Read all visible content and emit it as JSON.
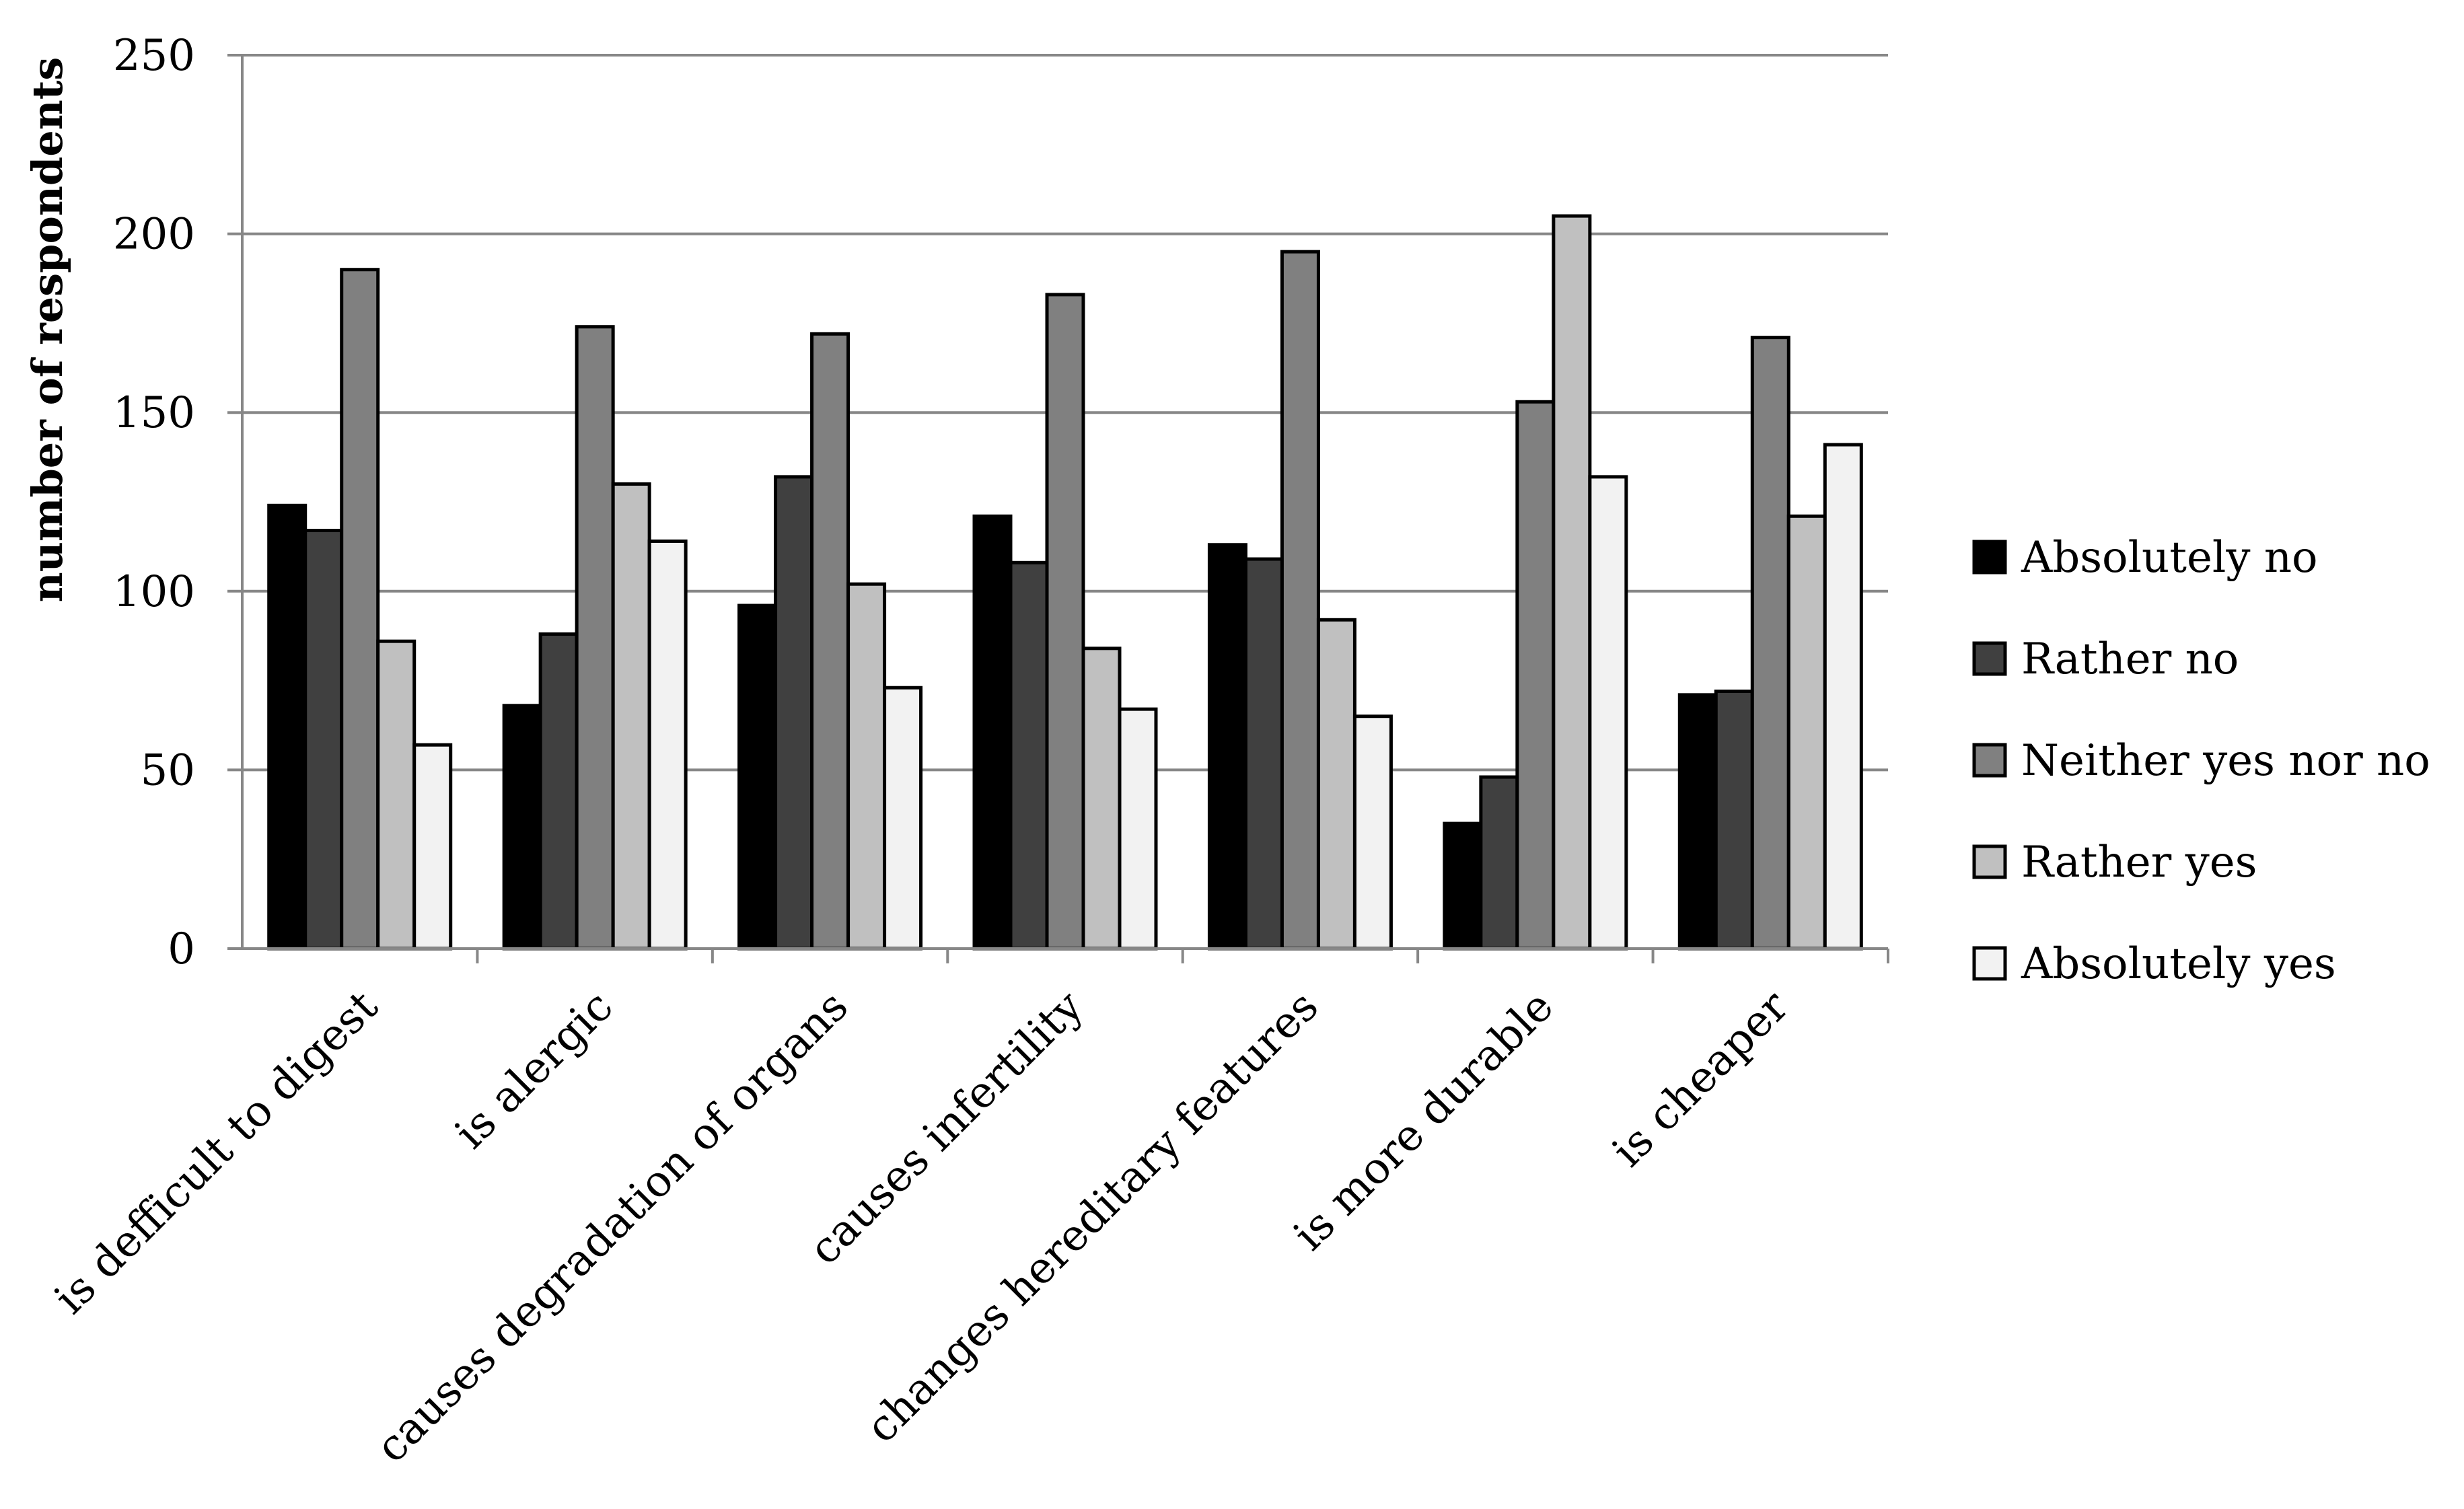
{
  "chart_data": {
    "type": "bar",
    "title": "",
    "xlabel": "",
    "ylabel": "number of respondents",
    "ylim": [
      0,
      250
    ],
    "yticks": [
      0,
      50,
      100,
      150,
      200,
      250
    ],
    "grid": true,
    "legend_position": "right",
    "categories": [
      "is defficult to digest",
      "is alergic",
      "causes degradation of organs",
      "causes infertility",
      "changes hereditary features",
      "is more durable",
      "is cheaper"
    ],
    "series": [
      {
        "name": "Absolutely no",
        "color": "#000000",
        "values": [
          124,
          68,
          96,
          121,
          113,
          35,
          71
        ]
      },
      {
        "name": "Rather no",
        "color": "#404040",
        "values": [
          117,
          88,
          132,
          108,
          109,
          48,
          72
        ]
      },
      {
        "name": "Neither yes nor no",
        "color": "#808080",
        "values": [
          190,
          174,
          172,
          183,
          195,
          153,
          171
        ]
      },
      {
        "name": "Rather yes",
        "color": "#c0c0c0",
        "values": [
          86,
          130,
          102,
          84,
          92,
          205,
          121
        ]
      },
      {
        "name": "Absolutely yes",
        "color": "#f2f2f2",
        "values": [
          57,
          114,
          73,
          67,
          65,
          132,
          141
        ]
      }
    ]
  }
}
